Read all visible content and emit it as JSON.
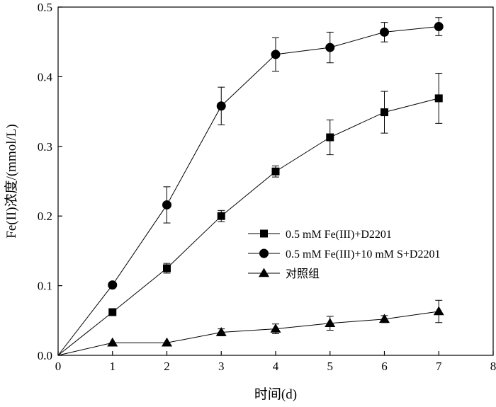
{
  "chart_data": {
    "type": "line",
    "title": "",
    "xlabel": "时间(d)",
    "ylabel": "Fe(II)浓度/(mmol/L)",
    "xlim": [
      0,
      8
    ],
    "ylim": [
      0,
      0.5
    ],
    "xticks": [
      0,
      1,
      2,
      3,
      4,
      5,
      6,
      7,
      8
    ],
    "yticks": [
      0.0,
      0.1,
      0.2,
      0.3,
      0.4,
      0.5
    ],
    "ytick_labels": [
      "0.0",
      "0.1",
      "0.2",
      "0.3",
      "0.4",
      "0.5"
    ],
    "grid": false,
    "legend_position": "center-right",
    "series": [
      {
        "name": "0.5 mM Fe(III)+D2201",
        "marker": "square",
        "x": [
          0,
          1,
          2,
          3,
          4,
          5,
          6,
          7
        ],
        "y": [
          0.0,
          0.062,
          0.125,
          0.2,
          0.264,
          0.313,
          0.349,
          0.369
        ],
        "err": [
          0,
          0,
          0.007,
          0.008,
          0.008,
          0.025,
          0.03,
          0.036
        ]
      },
      {
        "name": "0.5 mM Fe(III)+10 mM S+D2201",
        "marker": "circle",
        "x": [
          0,
          1,
          2,
          3,
          4,
          5,
          6,
          7
        ],
        "y": [
          0.0,
          0.101,
          0.216,
          0.358,
          0.432,
          0.442,
          0.464,
          0.472
        ],
        "err": [
          0,
          0,
          0.026,
          0.027,
          0.024,
          0.022,
          0.014,
          0.013
        ]
      },
      {
        "name": "对照组",
        "marker": "triangle",
        "x": [
          0,
          1,
          2,
          3,
          4,
          5,
          6,
          7
        ],
        "y": [
          0.0,
          0.018,
          0.018,
          0.033,
          0.038,
          0.046,
          0.052,
          0.063
        ],
        "err": [
          0,
          0,
          0,
          0.005,
          0.007,
          0.01,
          0.005,
          0.016
        ]
      }
    ]
  }
}
